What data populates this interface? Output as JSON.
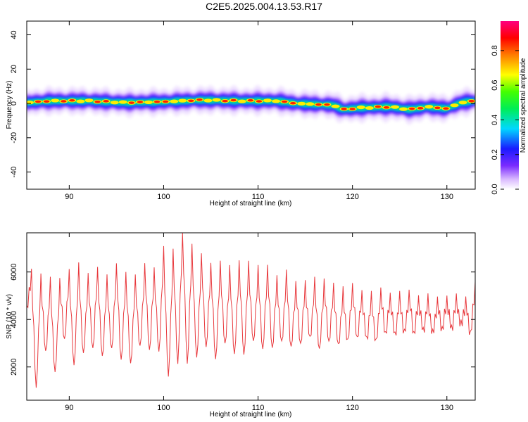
{
  "title": "C2E5.2025.004.13.53.R17",
  "chart_data": [
    {
      "type": "heatmap",
      "xlabel": "Height of straight line (km)",
      "ylabel": "Frequency (Hz)",
      "xlim": [
        85.5,
        133.0
      ],
      "ylim": [
        -50,
        48
      ],
      "xticks": [
        90,
        100,
        110,
        120,
        130
      ],
      "yticks": [
        40,
        20,
        0,
        -20,
        -40
      ],
      "colorbar": {
        "label": "Normalized spectral amplitude",
        "range": [
          0,
          0.97
        ],
        "ticks": [
          0.0,
          0.2,
          0.4,
          0.6,
          0.8
        ],
        "colormap": "rainbow (purple-blue-cyan-green-yellow-red-magenta)"
      },
      "ridge": {
        "description": "narrow band centered near 0 Hz",
        "center_hz": [
          [
            85.5,
            0.5
          ],
          [
            88,
            1.5
          ],
          [
            92,
            1.5
          ],
          [
            96,
            0.5
          ],
          [
            100,
            1.0
          ],
          [
            104,
            2.0
          ],
          [
            108,
            1.5
          ],
          [
            112,
            1.5
          ],
          [
            114,
            0.0
          ],
          [
            118,
            -1.0
          ],
          [
            119,
            -3.5
          ],
          [
            121,
            -2.5
          ],
          [
            124,
            -2.0
          ],
          [
            126,
            -3.5
          ],
          [
            128,
            -2.0
          ],
          [
            130,
            -3.0
          ],
          [
            131.5,
            0.5
          ],
          [
            133,
            1.5
          ]
        ]
      }
    },
    {
      "type": "line",
      "xlabel": "Height of straight line (km)",
      "ylabel": "SNR (10 * v/v)",
      "xlim": [
        85.5,
        133.0
      ],
      "ylim": [
        600,
        7650
      ],
      "xticks": [
        90,
        100,
        110,
        120,
        130
      ],
      "yticks": [
        2000,
        4000,
        6000
      ],
      "color": "#e8383c",
      "series": [
        {
          "x": [
            85.5,
            86.0,
            86.5,
            87.0,
            87.5,
            88.0,
            88.5,
            89.0,
            89.5,
            90.0,
            90.5,
            91.0,
            91.5,
            92.0,
            92.5,
            93.0,
            93.5,
            94.0,
            94.5,
            95.0,
            95.5,
            96.0,
            96.5,
            97.0,
            97.5,
            98.0,
            98.5,
            99.0,
            99.5,
            100.0,
            100.5,
            101.0,
            101.5,
            102.0,
            102.5,
            103.0,
            103.5,
            104.0,
            104.5,
            105.0,
            105.5,
            106.0,
            106.5,
            107.0,
            107.5,
            108.0,
            108.5,
            109.0,
            109.5,
            110.0,
            110.5,
            111.0,
            111.5,
            112.0,
            112.5,
            113.0,
            113.5,
            114.0,
            114.5,
            115.0,
            115.5,
            116.0,
            116.5,
            117.0,
            117.5,
            118.0,
            118.5,
            119.0,
            119.5,
            120.0,
            120.5,
            121.0,
            121.5,
            122.0,
            122.5,
            123.0,
            123.5,
            124.0,
            124.5,
            125.0,
            125.5,
            126.0,
            126.5,
            127.0,
            127.5,
            128.0,
            128.5,
            129.0,
            129.5,
            130.0,
            130.5,
            131.0,
            131.5,
            132.0,
            132.5,
            133.0
          ],
          "values": [
            4300,
            5900,
            950,
            5700,
            2400,
            5500,
            1500,
            5500,
            3000,
            5900,
            1800,
            6100,
            2300,
            5700,
            2600,
            6000,
            2200,
            5600,
            2500,
            6100,
            2100,
            5800,
            1900,
            5600,
            2600,
            6100,
            2500,
            6000,
            2400,
            6800,
            1300,
            6700,
            1900,
            7650,
            1900,
            6900,
            2100,
            6500,
            2600,
            6200,
            2100,
            6200,
            2700,
            6000,
            2300,
            6300,
            2300,
            6200,
            2800,
            6000,
            2500,
            6100,
            2600,
            5600,
            2800,
            5800,
            2600,
            5400,
            2800,
            5400,
            3000,
            5500,
            2500,
            5500,
            2900,
            5300,
            2700,
            5100,
            2900,
            5300,
            3100,
            5000,
            3000,
            4900,
            2900,
            5100,
            3300,
            4900,
            3200,
            4900,
            3300,
            5000,
            3300,
            4800,
            3400,
            4800,
            3300,
            4700,
            3500,
            4800,
            3500,
            4800,
            3700,
            4700,
            3300,
            5400
          ]
        }
      ]
    }
  ]
}
